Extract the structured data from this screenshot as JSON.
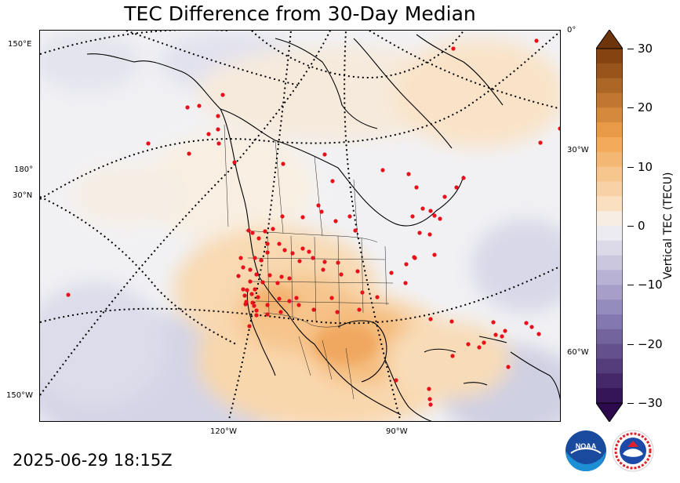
{
  "title": "TEC Difference from 30-Day Median",
  "timestamp": "2025-06-29 18:15Z",
  "colorbar": {
    "label": "Vertical TEC (TECU)",
    "ticks": [
      "30",
      "20",
      "10",
      "0",
      "−10",
      "−20",
      "−30"
    ],
    "range": [
      -30,
      30
    ],
    "colors": {
      "positive_max": "#7a3a0a",
      "positive_mid": "#f3a34e",
      "neutral": "#f4f3f4",
      "negative_mid": "#a49cc7",
      "negative_max": "#2d0a4e"
    }
  },
  "map": {
    "projection_labels": {
      "left_150e": "150°E",
      "left_180": "180°",
      "left_30n": "30°N",
      "left_150w": "150°W",
      "right_0": "0°",
      "right_30w": "30°W",
      "right_60w": "60°W",
      "bottom_120w": "120°W",
      "bottom_90w": "90°W"
    },
    "station_color": "#e8101a"
  },
  "logos": {
    "noaa": "NOAA",
    "nws": "NATIONAL WEATHER SERVICE"
  }
}
